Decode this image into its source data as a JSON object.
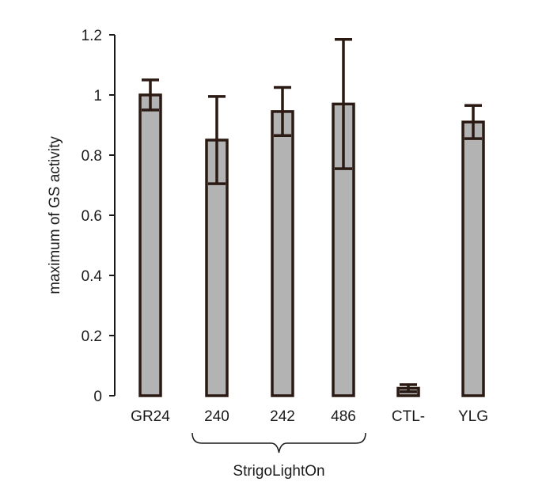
{
  "chart_data": {
    "type": "bar",
    "ylabel": "maximum of GS activity",
    "ylim": [
      0,
      1.2
    ],
    "yticks": [
      {
        "value": 0,
        "label": "0"
      },
      {
        "value": 0.2,
        "label": "0.2"
      },
      {
        "value": 0.4,
        "label": "0.4"
      },
      {
        "value": 0.6,
        "label": "0.6"
      },
      {
        "value": 0.8,
        "label": "0.8"
      },
      {
        "value": 1,
        "label": "1"
      },
      {
        "value": 1.2,
        "label": "1.2"
      }
    ],
    "categories": [
      "GR24",
      "240",
      "242",
      "486",
      "CTL-",
      "YLG"
    ],
    "values": [
      1.0,
      0.85,
      0.945,
      0.97,
      0.025,
      0.91
    ],
    "errors": [
      0.05,
      0.145,
      0.08,
      0.215,
      0.012,
      0.055
    ],
    "group_label": "StrigoLightOn",
    "group_categories": [
      "240",
      "242",
      "486"
    ],
    "colors": {
      "bar_fill": "#b3b3b3",
      "bar_stroke": "#2b1a14",
      "axis": "#1a1a1a"
    },
    "grid": false
  }
}
